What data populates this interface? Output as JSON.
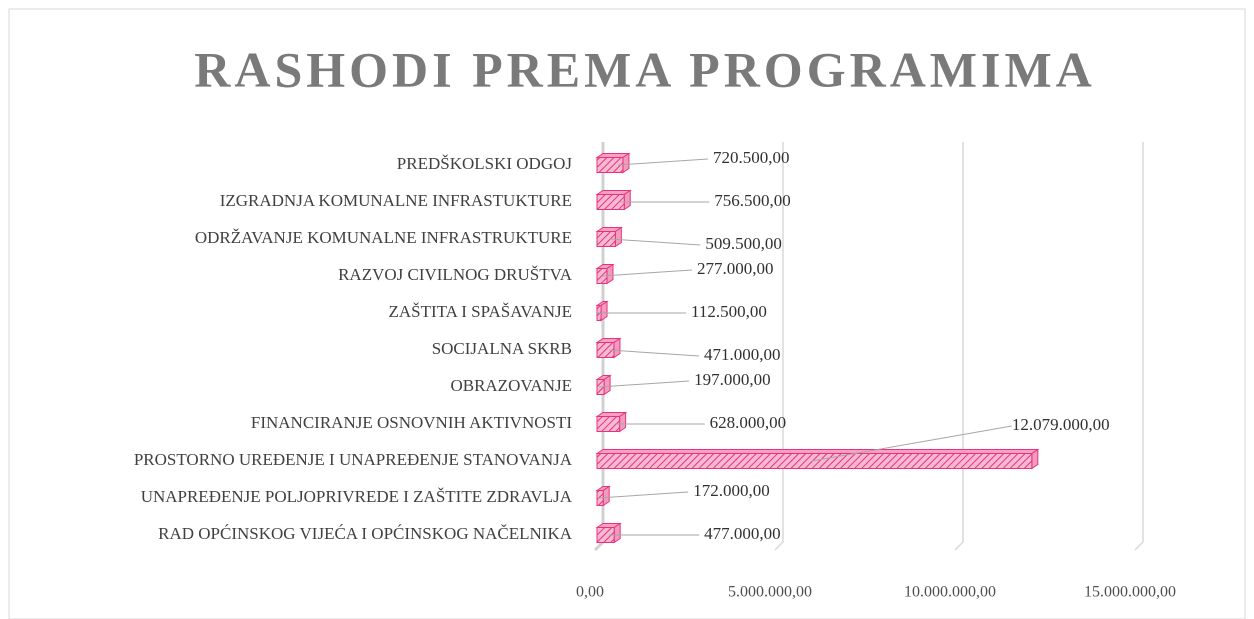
{
  "chart_data": {
    "type": "bar",
    "orientation": "horizontal",
    "title": "RASHODI PREMA PROGRAMIMA",
    "categories": [
      "PREDŠKOLSKI ODGOJ",
      "IZGRADNJA KOMUNALNE INFRASTUKTURE",
      "ODRŽAVANJE KOMUNALNE INFRASTRUKTURE",
      "RAZVOJ CIVILNOG DRUŠTVA",
      "ZAŠTITA I SPAŠAVANJE",
      "SOCIJALNA SKRB",
      "OBRAZOVANJE",
      "FINANCIRANJE OSNOVNIH AKTIVNOSTI",
      "PROSTORNO UREĐENJE I UNAPREĐENJE STANOVANJA",
      "UNAPREĐENJE POLJOPRIVREDE I ZAŠTITE ZDRAVLJA",
      "RAD OPĆINSKOG VIJEĆA I OPĆINSKOG NAČELNIKA"
    ],
    "values": [
      720500,
      756500,
      509500,
      277000,
      112500,
      471000,
      197000,
      628000,
      12079000,
      172000,
      477000
    ],
    "value_labels": [
      "720.500,00",
      "756.500,00",
      "509.500,00",
      "277.000,00",
      "112.500,00",
      "471.000,00",
      "197.000,00",
      "628.000,00",
      "12.079.000,00",
      "172.000,00",
      "477.000,00"
    ],
    "color": "#e8327c",
    "xlim": [
      0,
      15000000
    ],
    "xticks": [
      {
        "value": 0,
        "label": "0,00"
      },
      {
        "value": 5000000,
        "label": "5.000.000,00"
      },
      {
        "value": 10000000,
        "label": "10.000.000,00"
      },
      {
        "value": 15000000,
        "label": "15.000.000,00"
      }
    ],
    "grid": true
  }
}
